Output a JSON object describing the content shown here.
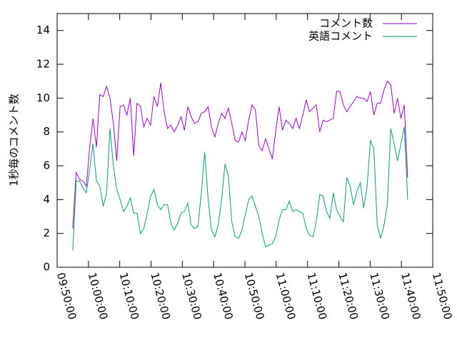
{
  "chart_data": {
    "type": "line",
    "title": "",
    "xlabel": "",
    "ylabel": "1秒毎のコメント数",
    "x_ticks": [
      "09:50:00",
      "10:00:00",
      "10:10:00",
      "10:20:00",
      "10:30:00",
      "10:40:00",
      "10:50:00",
      "11:00:00",
      "11:10:00",
      "11:20:00",
      "11:30:00",
      "11:40:00",
      "11:50:00"
    ],
    "y_ticks": [
      "0",
      "2",
      "4",
      "6",
      "8",
      "10",
      "12",
      "14"
    ],
    "xlim_minutes": [
      0,
      120
    ],
    "ylim": [
      0,
      15
    ],
    "grid": false,
    "legend_position": "top-right",
    "series": [
      {
        "name": "コメント数",
        "color": "#9400d3",
        "values": [
          2.3,
          5.6,
          5.2,
          5.1,
          4.8,
          7.1,
          8.8,
          7.1,
          10.2,
          10.1,
          10.7,
          10.0,
          8.5,
          6.3,
          9.5,
          9.6,
          9.0,
          10.0,
          6.6,
          9.7,
          9.5,
          8.3,
          8.8,
          8.4,
          10.1,
          9.5,
          10.9,
          9.2,
          8.2,
          8.4,
          8.0,
          8.4,
          8.9,
          8.1,
          9.5,
          8.9,
          8.5,
          8.6,
          9.1,
          9.2,
          9.5,
          8.3,
          7.7,
          8.5,
          9.1,
          8.8,
          9.4,
          8.5,
          7.5,
          7.4,
          8.0,
          7.5,
          8.7,
          9.6,
          9.3,
          7.2,
          6.9,
          7.6,
          7.0,
          6.4,
          8.1,
          9.5,
          8.1,
          8.7,
          8.5,
          8.2,
          8.8,
          8.2,
          9.0,
          9.9,
          9.2,
          9.4,
          9.6,
          8.0,
          8.7,
          8.6,
          8.7,
          8.8,
          10.4,
          10.4,
          9.6,
          9.2,
          9.5,
          9.8,
          10.1,
          10.0,
          10.0,
          9.8,
          10.4,
          9.0,
          9.7,
          9.7,
          10.5,
          11.0,
          10.8,
          9.1,
          10.0,
          8.8,
          9.6,
          5.3
        ]
      },
      {
        "name": "英語コメント",
        "color": "#009e73",
        "values": [
          1.0,
          5.1,
          5.1,
          4.7,
          4.4,
          5.8,
          7.3,
          5.1,
          4.8,
          3.6,
          4.4,
          8.2,
          6.0,
          4.6,
          4.0,
          3.3,
          3.6,
          4.1,
          3.2,
          3.2,
          2.0,
          2.3,
          3.2,
          4.2,
          4.6,
          3.7,
          3.4,
          3.7,
          3.7,
          2.6,
          2.2,
          2.6,
          3.2,
          3.3,
          3.8,
          2.5,
          2.3,
          2.4,
          4.4,
          6.8,
          4.1,
          2.2,
          1.8,
          2.5,
          4.0,
          6.1,
          5.4,
          2.7,
          1.8,
          1.7,
          2.2,
          3.1,
          4.0,
          4.2,
          3.6,
          3.0,
          2.0,
          1.2,
          1.3,
          1.4,
          1.8,
          2.8,
          3.4,
          3.4,
          3.9,
          3.3,
          3.4,
          3.3,
          3.2,
          2.3,
          1.9,
          1.8,
          2.7,
          4.3,
          4.2,
          3.3,
          2.9,
          4.4,
          3.4,
          3.0,
          2.7,
          5.3,
          4.8,
          3.7,
          4.5,
          5.0,
          3.5,
          4.8,
          7.5,
          7.0,
          2.5,
          1.7,
          2.5,
          3.7,
          8.2,
          7.3,
          6.3,
          7.3,
          8.3,
          4.0
        ]
      }
    ]
  }
}
